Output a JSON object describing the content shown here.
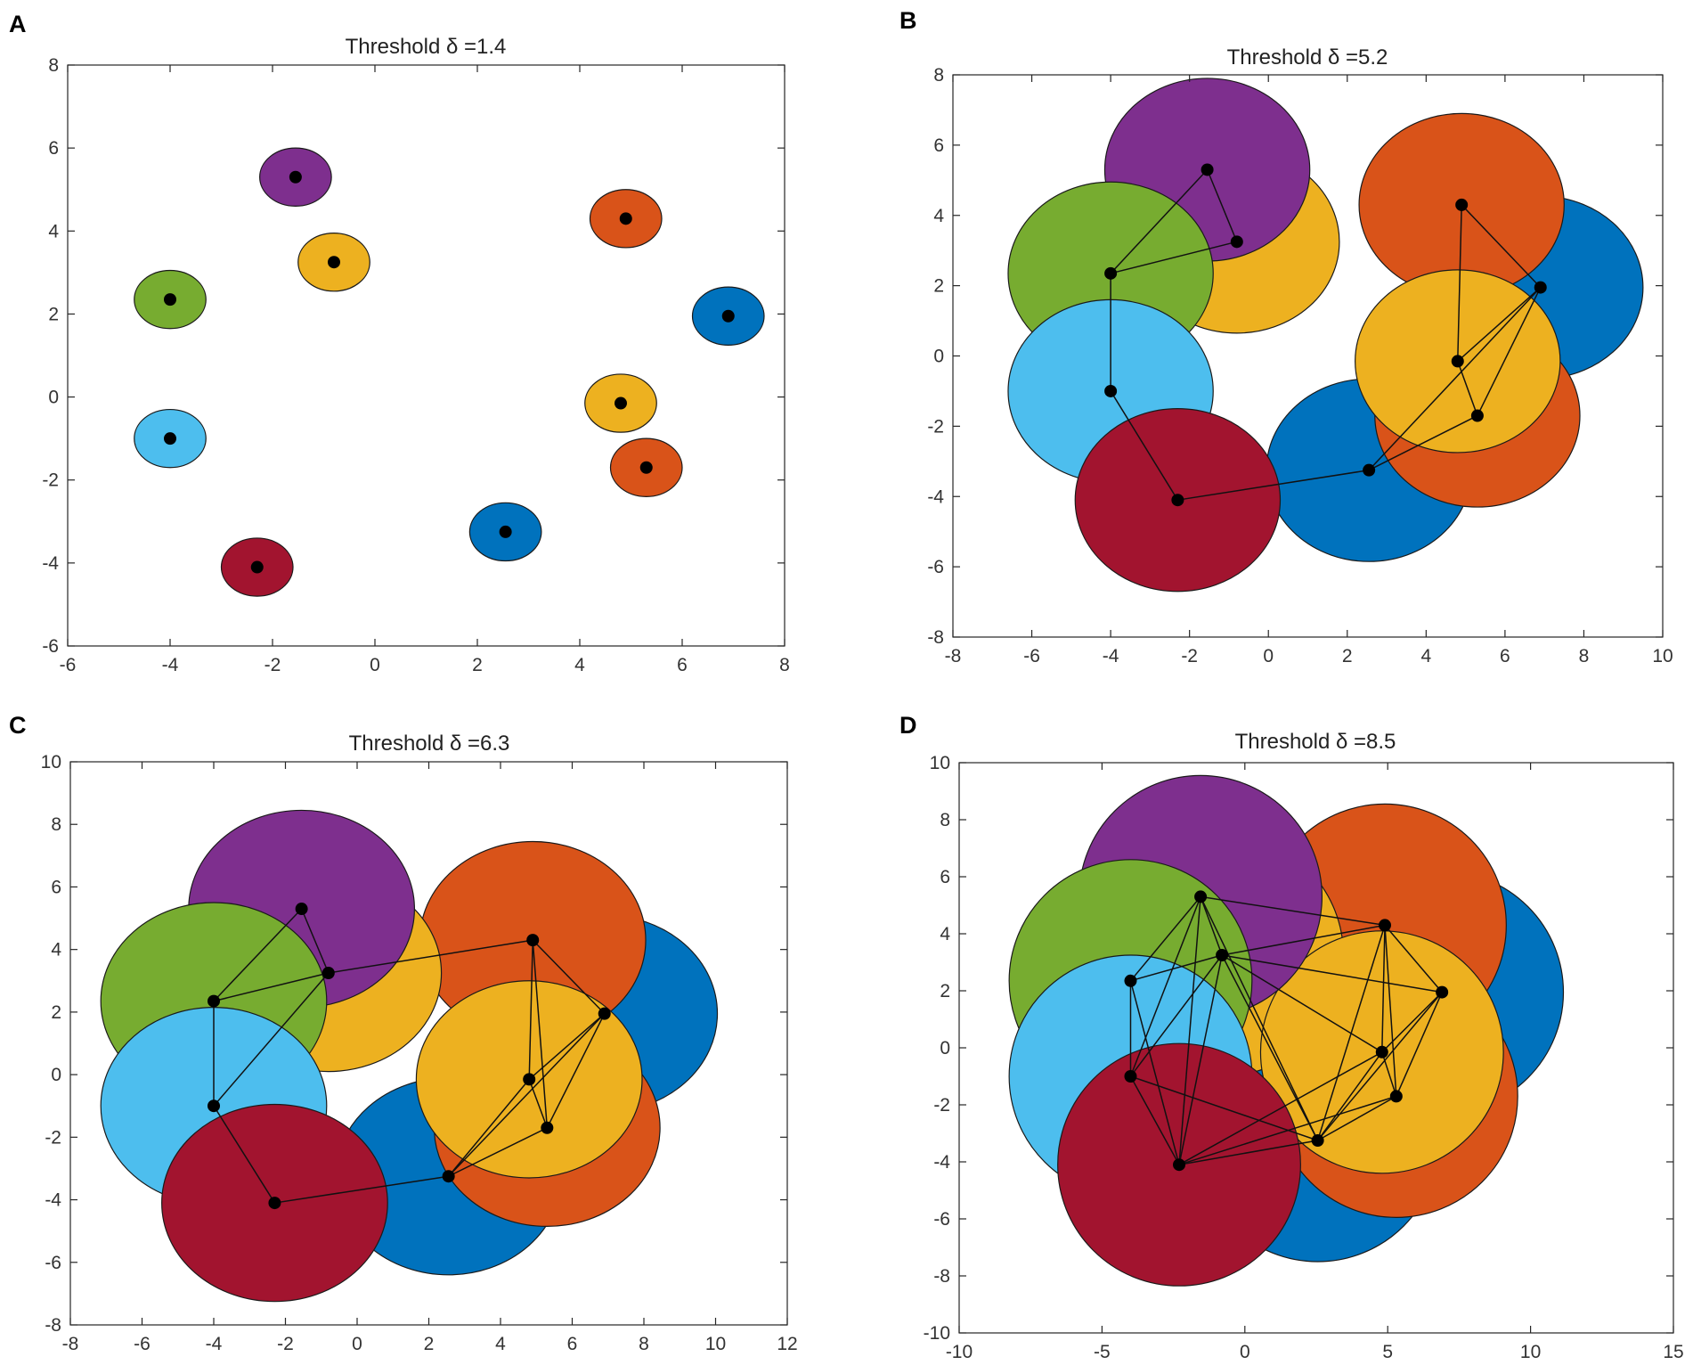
{
  "figure": {
    "background": "#ffffff"
  },
  "chart_data": [
    {
      "type": "scatter",
      "panel_label": "A",
      "title": "Threshold δ =1.4",
      "radius": 0.7,
      "xlim": [
        -6,
        8
      ],
      "ylim": [
        -6,
        8
      ],
      "xticks": [
        -6,
        -4,
        -2,
        0,
        2,
        4,
        6,
        8
      ],
      "yticks": [
        -6,
        -4,
        -2,
        0,
        2,
        4,
        6,
        8
      ],
      "points": [
        {
          "x": 6.9,
          "y": 1.95,
          "color": "#0072BD"
        },
        {
          "x": 2.55,
          "y": -3.25,
          "color": "#0072BD"
        },
        {
          "x": 4.9,
          "y": 4.3,
          "color": "#D95319"
        },
        {
          "x": 5.3,
          "y": -1.7,
          "color": "#D95319"
        },
        {
          "x": -0.8,
          "y": 3.25,
          "color": "#EDB120"
        },
        {
          "x": 4.8,
          "y": -0.15,
          "color": "#EDB120"
        },
        {
          "x": -1.55,
          "y": 5.3,
          "color": "#7E2F8E"
        },
        {
          "x": -4.0,
          "y": 2.35,
          "color": "#77AC30"
        },
        {
          "x": -4.0,
          "y": -1.0,
          "color": "#4DBEEE"
        },
        {
          "x": -2.3,
          "y": -4.1,
          "color": "#A2142F"
        }
      ],
      "edges": []
    },
    {
      "type": "scatter",
      "panel_label": "B",
      "title": "Threshold δ =5.2",
      "radius": 2.6,
      "xlim": [
        -8,
        10
      ],
      "ylim": [
        -8,
        8
      ],
      "xticks": [
        -8,
        -6,
        -4,
        -2,
        0,
        2,
        4,
        6,
        8,
        10
      ],
      "yticks": [
        -8,
        -6,
        -4,
        -2,
        0,
        2,
        4,
        6,
        8
      ],
      "points": [
        {
          "x": 6.9,
          "y": 1.95,
          "color": "#0072BD"
        },
        {
          "x": 2.55,
          "y": -3.25,
          "color": "#0072BD"
        },
        {
          "x": 4.9,
          "y": 4.3,
          "color": "#D95319"
        },
        {
          "x": 5.3,
          "y": -1.7,
          "color": "#D95319"
        },
        {
          "x": -0.8,
          "y": 3.25,
          "color": "#EDB120"
        },
        {
          "x": 4.8,
          "y": -0.15,
          "color": "#EDB120"
        },
        {
          "x": -1.55,
          "y": 5.3,
          "color": "#7E2F8E"
        },
        {
          "x": -4.0,
          "y": 2.35,
          "color": "#77AC30"
        },
        {
          "x": -4.0,
          "y": -1.0,
          "color": "#4DBEEE"
        },
        {
          "x": -2.3,
          "y": -4.1,
          "color": "#A2142F"
        }
      ],
      "edges": [
        [
          6,
          7
        ],
        [
          6,
          4
        ],
        [
          7,
          4
        ],
        [
          7,
          8
        ],
        [
          8,
          9
        ],
        [
          9,
          1
        ],
        [
          2,
          0
        ],
        [
          2,
          5
        ],
        [
          5,
          0
        ],
        [
          5,
          3
        ],
        [
          0,
          3
        ],
        [
          0,
          1
        ],
        [
          1,
          3
        ]
      ]
    },
    {
      "type": "scatter",
      "panel_label": "C",
      "title": "Threshold δ =6.3",
      "radius": 3.15,
      "xlim": [
        -8,
        12
      ],
      "ylim": [
        -8,
        10
      ],
      "xticks": [
        -8,
        -6,
        -4,
        -2,
        0,
        2,
        4,
        6,
        8,
        10,
        12
      ],
      "yticks": [
        -8,
        -6,
        -4,
        -2,
        0,
        2,
        4,
        6,
        8,
        10
      ],
      "points": [
        {
          "x": 6.9,
          "y": 1.95,
          "color": "#0072BD"
        },
        {
          "x": 2.55,
          "y": -3.25,
          "color": "#0072BD"
        },
        {
          "x": 4.9,
          "y": 4.3,
          "color": "#D95319"
        },
        {
          "x": 5.3,
          "y": -1.7,
          "color": "#D95319"
        },
        {
          "x": -0.8,
          "y": 3.25,
          "color": "#EDB120"
        },
        {
          "x": 4.8,
          "y": -0.15,
          "color": "#EDB120"
        },
        {
          "x": -1.55,
          "y": 5.3,
          "color": "#7E2F8E"
        },
        {
          "x": -4.0,
          "y": 2.35,
          "color": "#77AC30"
        },
        {
          "x": -4.0,
          "y": -1.0,
          "color": "#4DBEEE"
        },
        {
          "x": -2.3,
          "y": -4.1,
          "color": "#A2142F"
        }
      ],
      "edges": [
        [
          6,
          7
        ],
        [
          6,
          4
        ],
        [
          7,
          4
        ],
        [
          7,
          8
        ],
        [
          4,
          8
        ],
        [
          8,
          9
        ],
        [
          4,
          2
        ],
        [
          9,
          1
        ],
        [
          2,
          0
        ],
        [
          2,
          5
        ],
        [
          2,
          3
        ],
        [
          5,
          0
        ],
        [
          5,
          3
        ],
        [
          0,
          3
        ],
        [
          0,
          1
        ],
        [
          1,
          5
        ],
        [
          1,
          3
        ]
      ]
    },
    {
      "type": "scatter",
      "panel_label": "D",
      "title": "Threshold δ =8.5",
      "radius": 4.25,
      "xlim": [
        -10,
        15
      ],
      "ylim": [
        -10,
        10
      ],
      "xticks": [
        -10,
        -5,
        0,
        5,
        10,
        15
      ],
      "yticks": [
        -10,
        -8,
        -6,
        -4,
        -2,
        0,
        2,
        4,
        6,
        8,
        10
      ],
      "points": [
        {
          "x": 6.9,
          "y": 1.95,
          "color": "#0072BD"
        },
        {
          "x": 2.55,
          "y": -3.25,
          "color": "#0072BD"
        },
        {
          "x": 4.9,
          "y": 4.3,
          "color": "#D95319"
        },
        {
          "x": 5.3,
          "y": -1.7,
          "color": "#D95319"
        },
        {
          "x": -0.8,
          "y": 3.25,
          "color": "#EDB120"
        },
        {
          "x": 4.8,
          "y": -0.15,
          "color": "#EDB120"
        },
        {
          "x": -1.55,
          "y": 5.3,
          "color": "#7E2F8E"
        },
        {
          "x": -4.0,
          "y": 2.35,
          "color": "#77AC30"
        },
        {
          "x": -4.0,
          "y": -1.0,
          "color": "#4DBEEE"
        },
        {
          "x": -2.3,
          "y": -4.1,
          "color": "#A2142F"
        }
      ],
      "edges": [
        [
          6,
          7
        ],
        [
          6,
          4
        ],
        [
          6,
          8
        ],
        [
          6,
          9
        ],
        [
          6,
          2
        ],
        [
          6,
          1
        ],
        [
          7,
          4
        ],
        [
          7,
          8
        ],
        [
          7,
          9
        ],
        [
          4,
          8
        ],
        [
          4,
          9
        ],
        [
          4,
          2
        ],
        [
          4,
          5
        ],
        [
          4,
          0
        ],
        [
          4,
          1
        ],
        [
          8,
          9
        ],
        [
          8,
          1
        ],
        [
          9,
          1
        ],
        [
          9,
          5
        ],
        [
          9,
          3
        ],
        [
          2,
          0
        ],
        [
          2,
          5
        ],
        [
          2,
          3
        ],
        [
          2,
          1
        ],
        [
          5,
          0
        ],
        [
          5,
          3
        ],
        [
          5,
          1
        ],
        [
          0,
          3
        ],
        [
          0,
          1
        ],
        [
          1,
          3
        ]
      ]
    }
  ]
}
